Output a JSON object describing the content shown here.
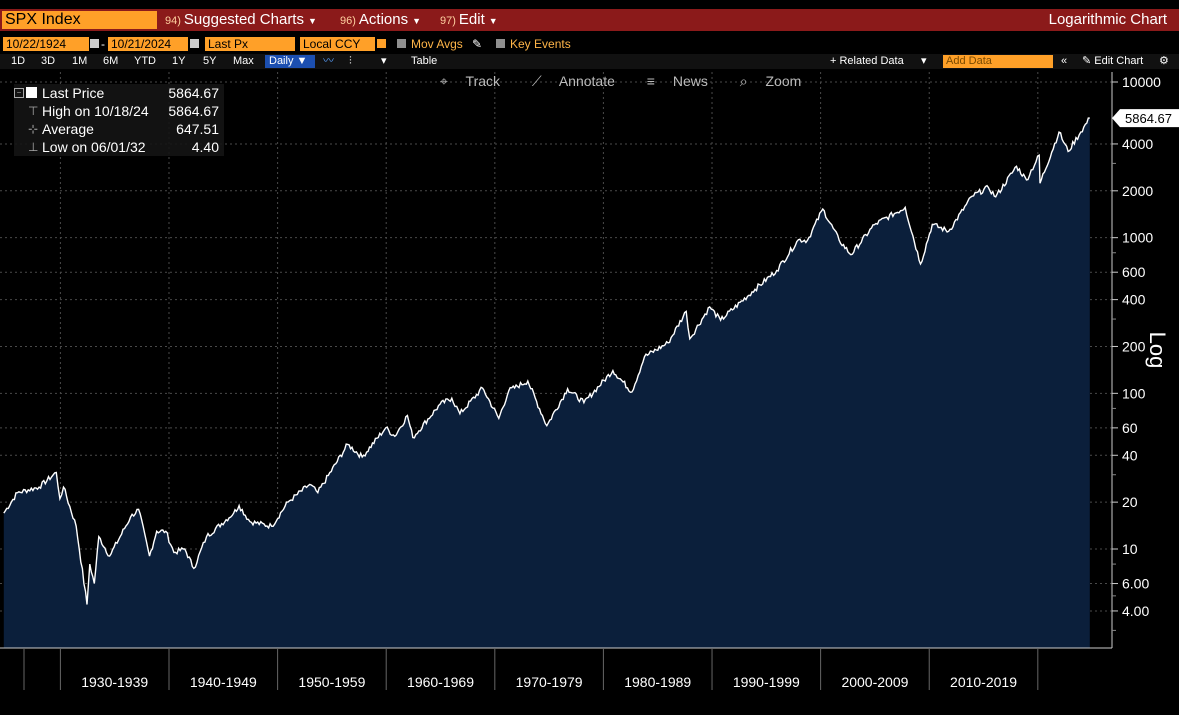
{
  "header": {
    "ticker": "SPX Index",
    "menus": [
      {
        "num": "94)",
        "label": "Suggested Charts"
      },
      {
        "num": "96)",
        "label": "Actions"
      },
      {
        "num": "97)",
        "label": "Edit"
      }
    ],
    "chart_type": "Logarithmic Chart"
  },
  "settings": {
    "start_date": "10/22/1924",
    "end_date": "10/21/2024",
    "field": "Last Px",
    "currency": "Local CCY",
    "mov_avgs": "Mov Avgs",
    "key_events": "Key Events"
  },
  "periods": [
    "1D",
    "3D",
    "1M",
    "6M",
    "YTD",
    "1Y",
    "5Y",
    "Max"
  ],
  "frequency": "Daily",
  "table_label": "Table",
  "related_data": "+ Related Data",
  "add_data_placeholder": "Add Data",
  "edit_chart": "Edit Chart",
  "toolbar": {
    "track": "Track",
    "annotate": "Annotate",
    "news": "News",
    "zoom": "Zoom"
  },
  "legend": {
    "last_price_label": "Last Price",
    "last_price_value": "5864.67",
    "high_label": "High on 10/18/24",
    "high_value": "5864.67",
    "average_label": "Average",
    "average_value": "647.51",
    "low_label": "Low on 06/01/32",
    "low_value": "4.40"
  },
  "colors": {
    "background": "#000000",
    "area_fill": "#0b1f3b",
    "line": "#ffffff",
    "title_bar": "#8b1a1a",
    "accent_orange": "#ffa028"
  },
  "chart_data": {
    "type": "area",
    "title": "",
    "yscale": "log",
    "ylabel": "Log",
    "ylim": [
      3,
      13000
    ],
    "y_ticks": [
      10000,
      4000,
      2000,
      1000,
      600,
      400,
      200,
      100,
      60,
      40,
      20,
      10,
      6,
      4
    ],
    "y_tick_labels": [
      "10000",
      "4000",
      "2000",
      "1000",
      "600",
      "400",
      "200",
      "100",
      "60",
      "40",
      "20",
      "10",
      "6.00",
      "4.00"
    ],
    "x_tick_labels": [
      "1930-1939",
      "1940-1949",
      "1950-1959",
      "1960-1969",
      "1970-1979",
      "1980-1989",
      "1990-1999",
      "2000-2009",
      "2010-2019"
    ],
    "xlim": [
      "1924-10-22",
      "2024-10-21"
    ],
    "last_value_label": "5864.67",
    "grid": true,
    "series": [
      {
        "values": [
          [
            "1924-10",
            17
          ],
          [
            "1926-01",
            23
          ],
          [
            "1928-01",
            25
          ],
          [
            "1929-08",
            31
          ],
          [
            "1929-12",
            21
          ],
          [
            "1930-04",
            25
          ],
          [
            "1931-06",
            14
          ],
          [
            "1932-06",
            4.4
          ],
          [
            "1932-09",
            8
          ],
          [
            "1933-02",
            6
          ],
          [
            "1933-07",
            12
          ],
          [
            "1934-07",
            9
          ],
          [
            "1936-06",
            16
          ],
          [
            "1937-03",
            18
          ],
          [
            "1938-03",
            9
          ],
          [
            "1938-11",
            13
          ],
          [
            "1939-09",
            13
          ],
          [
            "1940-06",
            9.5
          ],
          [
            "1941-06",
            10
          ],
          [
            "1942-04",
            7.5
          ],
          [
            "1943-06",
            12
          ],
          [
            "1945-12",
            17
          ],
          [
            "1946-06",
            19
          ],
          [
            "1947-06",
            15
          ],
          [
            "1949-06",
            14
          ],
          [
            "1950-12",
            20
          ],
          [
            "1952-12",
            26
          ],
          [
            "1953-09",
            23
          ],
          [
            "1956-06",
            47
          ],
          [
            "1957-10",
            39
          ],
          [
            "1959-12",
            60
          ],
          [
            "1960-10",
            53
          ],
          [
            "1961-12",
            72
          ],
          [
            "1962-06",
            52
          ],
          [
            "1964-12",
            85
          ],
          [
            "1966-01",
            93
          ],
          [
            "1966-10",
            74
          ],
          [
            "1968-11",
            108
          ],
          [
            "1970-05",
            69
          ],
          [
            "1971-04",
            104
          ],
          [
            "1973-01",
            120
          ],
          [
            "1974-10",
            62
          ],
          [
            "1976-09",
            107
          ],
          [
            "1978-03",
            87
          ],
          [
            "1980-11",
            140
          ],
          [
            "1982-08",
            102
          ],
          [
            "1983-10",
            172
          ],
          [
            "1985-12",
            211
          ],
          [
            "1987-08",
            336
          ],
          [
            "1987-12",
            224
          ],
          [
            "1989-10",
            359
          ],
          [
            "1990-10",
            295
          ],
          [
            "1993-12",
            466
          ],
          [
            "1995-12",
            615
          ],
          [
            "1997-12",
            970
          ],
          [
            "1998-10",
            960
          ],
          [
            "2000-03",
            1527
          ],
          [
            "2001-09",
            965
          ],
          [
            "2002-10",
            777
          ],
          [
            "2004-12",
            1212
          ],
          [
            "2007-10",
            1565
          ],
          [
            "2009-03",
            677
          ],
          [
            "2010-04",
            1217
          ],
          [
            "2011-10",
            1099
          ],
          [
            "2013-12",
            1848
          ],
          [
            "2015-06",
            2100
          ],
          [
            "2016-02",
            1829
          ],
          [
            "2018-01",
            2873
          ],
          [
            "2018-12",
            2351
          ],
          [
            "2020-02",
            3386
          ],
          [
            "2020-03",
            2237
          ],
          [
            "2021-12",
            4766
          ],
          [
            "2022-10",
            3577
          ],
          [
            "2023-12",
            4770
          ],
          [
            "2024-10",
            5864.67
          ]
        ]
      }
    ]
  }
}
